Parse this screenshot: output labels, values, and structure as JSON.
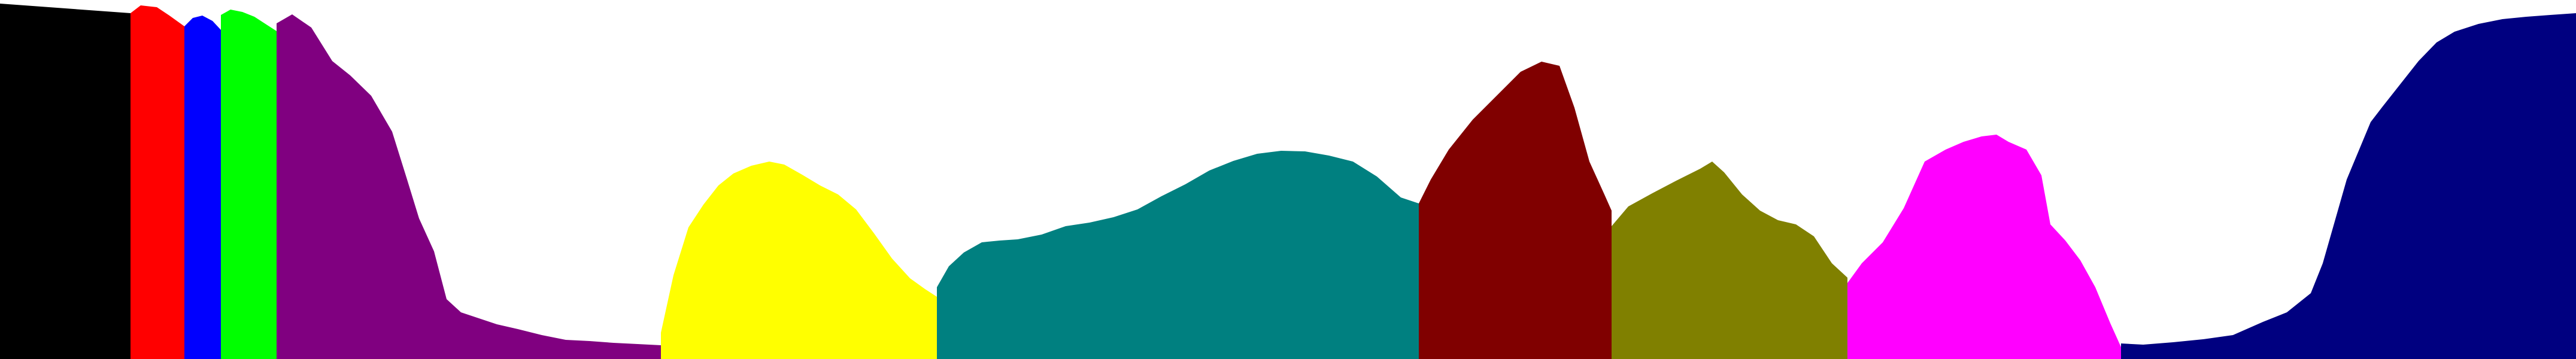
{
  "chart_data": {
    "type": "area",
    "title": "",
    "xlabel": "",
    "ylabel": "",
    "ylim": [
      0,
      600
    ],
    "grid": false,
    "legend": "none",
    "segments": [
      {
        "color": "#000000",
        "x_start": 0,
        "x_end": 218,
        "profile": [
          [
            0,
            594
          ],
          [
            218,
            578
          ]
        ]
      },
      {
        "color": "#ff0000",
        "x_start": 218,
        "x_end": 308,
        "profile": [
          [
            218,
            578
          ],
          [
            235,
            591
          ],
          [
            262,
            588
          ],
          [
            283,
            574
          ],
          [
            308,
            556
          ]
        ]
      },
      {
        "color": "#0000ff",
        "x_start": 308,
        "x_end": 369,
        "profile": [
          [
            308,
            556
          ],
          [
            322,
            570
          ],
          [
            338,
            574
          ],
          [
            355,
            565
          ],
          [
            369,
            550
          ]
        ]
      },
      {
        "color": "#00ff00",
        "x_start": 369,
        "x_end": 462,
        "profile": [
          [
            369,
            575
          ],
          [
            385,
            584
          ],
          [
            405,
            580
          ],
          [
            425,
            572
          ],
          [
            445,
            559
          ],
          [
            462,
            548
          ]
        ]
      },
      {
        "color": "#800080",
        "x_start": 462,
        "x_end": 1104,
        "profile": [
          [
            462,
            561
          ],
          [
            488,
            576
          ],
          [
            520,
            554
          ],
          [
            555,
            498
          ],
          [
            585,
            474
          ],
          [
            620,
            440
          ],
          [
            655,
            380
          ],
          [
            680,
            300
          ],
          [
            700,
            235
          ],
          [
            725,
            180
          ],
          [
            746,
            100
          ],
          [
            770,
            78
          ],
          [
            800,
            68
          ],
          [
            830,
            58
          ],
          [
            865,
            50
          ],
          [
            905,
            40
          ],
          [
            945,
            32
          ],
          [
            985,
            30
          ],
          [
            1025,
            27
          ],
          [
            1065,
            25
          ],
          [
            1104,
            23
          ]
        ]
      },
      {
        "color": "#ffff00",
        "x_start": 1104,
        "x_end": 1565,
        "profile": [
          [
            1104,
            44
          ],
          [
            1125,
            140
          ],
          [
            1150,
            220
          ],
          [
            1175,
            258
          ],
          [
            1200,
            290
          ],
          [
            1225,
            310
          ],
          [
            1255,
            323
          ],
          [
            1285,
            330
          ],
          [
            1310,
            325
          ],
          [
            1340,
            308
          ],
          [
            1370,
            290
          ],
          [
            1400,
            275
          ],
          [
            1430,
            250
          ],
          [
            1460,
            210
          ],
          [
            1490,
            168
          ],
          [
            1520,
            135
          ],
          [
            1545,
            117
          ],
          [
            1565,
            104
          ]
        ]
      },
      {
        "color": "#008080",
        "x_start": 1565,
        "x_end": 2370,
        "profile": [
          [
            1565,
            120
          ],
          [
            1585,
            155
          ],
          [
            1610,
            178
          ],
          [
            1640,
            195
          ],
          [
            1670,
            198
          ],
          [
            1700,
            200
          ],
          [
            1740,
            208
          ],
          [
            1780,
            222
          ],
          [
            1820,
            228
          ],
          [
            1860,
            237
          ],
          [
            1900,
            250
          ],
          [
            1940,
            272
          ],
          [
            1980,
            292
          ],
          [
            2020,
            315
          ],
          [
            2060,
            331
          ],
          [
            2100,
            343
          ],
          [
            2140,
            348
          ],
          [
            2180,
            347
          ],
          [
            2220,
            340
          ],
          [
            2260,
            330
          ],
          [
            2300,
            305
          ],
          [
            2340,
            270
          ],
          [
            2370,
            260
          ]
        ]
      },
      {
        "color": "#800000",
        "x_start": 2370,
        "x_end": 2692,
        "profile": [
          [
            2370,
            260
          ],
          [
            2390,
            300
          ],
          [
            2420,
            350
          ],
          [
            2460,
            400
          ],
          [
            2500,
            440
          ],
          [
            2540,
            480
          ],
          [
            2575,
            497
          ],
          [
            2605,
            490
          ],
          [
            2630,
            420
          ],
          [
            2655,
            330
          ],
          [
            2680,
            275
          ],
          [
            2692,
            248
          ]
        ]
      },
      {
        "color": "#808000",
        "x_start": 2692,
        "x_end": 3086,
        "profile": [
          [
            2692,
            222
          ],
          [
            2720,
            255
          ],
          [
            2760,
            277
          ],
          [
            2800,
            298
          ],
          [
            2840,
            318
          ],
          [
            2860,
            330
          ],
          [
            2880,
            312
          ],
          [
            2910,
            275
          ],
          [
            2940,
            248
          ],
          [
            2970,
            232
          ],
          [
            3000,
            225
          ],
          [
            3030,
            205
          ],
          [
            3060,
            160
          ],
          [
            3086,
            136
          ]
        ]
      },
      {
        "color": "#ff00ff",
        "x_start": 3086,
        "x_end": 3543,
        "profile": [
          [
            3086,
            127
          ],
          [
            3110,
            160
          ],
          [
            3145,
            195
          ],
          [
            3180,
            252
          ],
          [
            3215,
            330
          ],
          [
            3250,
            350
          ],
          [
            3280,
            363
          ],
          [
            3310,
            372
          ],
          [
            3335,
            375
          ],
          [
            3355,
            363
          ],
          [
            3385,
            350
          ],
          [
            3410,
            307
          ],
          [
            3425,
            225
          ],
          [
            3450,
            198
          ],
          [
            3475,
            165
          ],
          [
            3500,
            120
          ],
          [
            3525,
            60
          ],
          [
            3543,
            20
          ]
        ]
      },
      {
        "color": "#000080",
        "x_start": 3543,
        "x_end": 4303,
        "profile": [
          [
            3543,
            26
          ],
          [
            3580,
            24
          ],
          [
            3630,
            28
          ],
          [
            3680,
            33
          ],
          [
            3730,
            40
          ],
          [
            3780,
            62
          ],
          [
            3820,
            78
          ],
          [
            3860,
            110
          ],
          [
            3880,
            160
          ],
          [
            3900,
            230
          ],
          [
            3920,
            300
          ],
          [
            3945,
            360
          ],
          [
            3960,
            396
          ],
          [
            3980,
            422
          ],
          [
            4010,
            460
          ],
          [
            4040,
            498
          ],
          [
            4070,
            529
          ],
          [
            4100,
            547
          ],
          [
            4140,
            560
          ],
          [
            4180,
            568
          ],
          [
            4220,
            572
          ],
          [
            4260,
            575
          ],
          [
            4303,
            578
          ]
        ]
      }
    ]
  }
}
